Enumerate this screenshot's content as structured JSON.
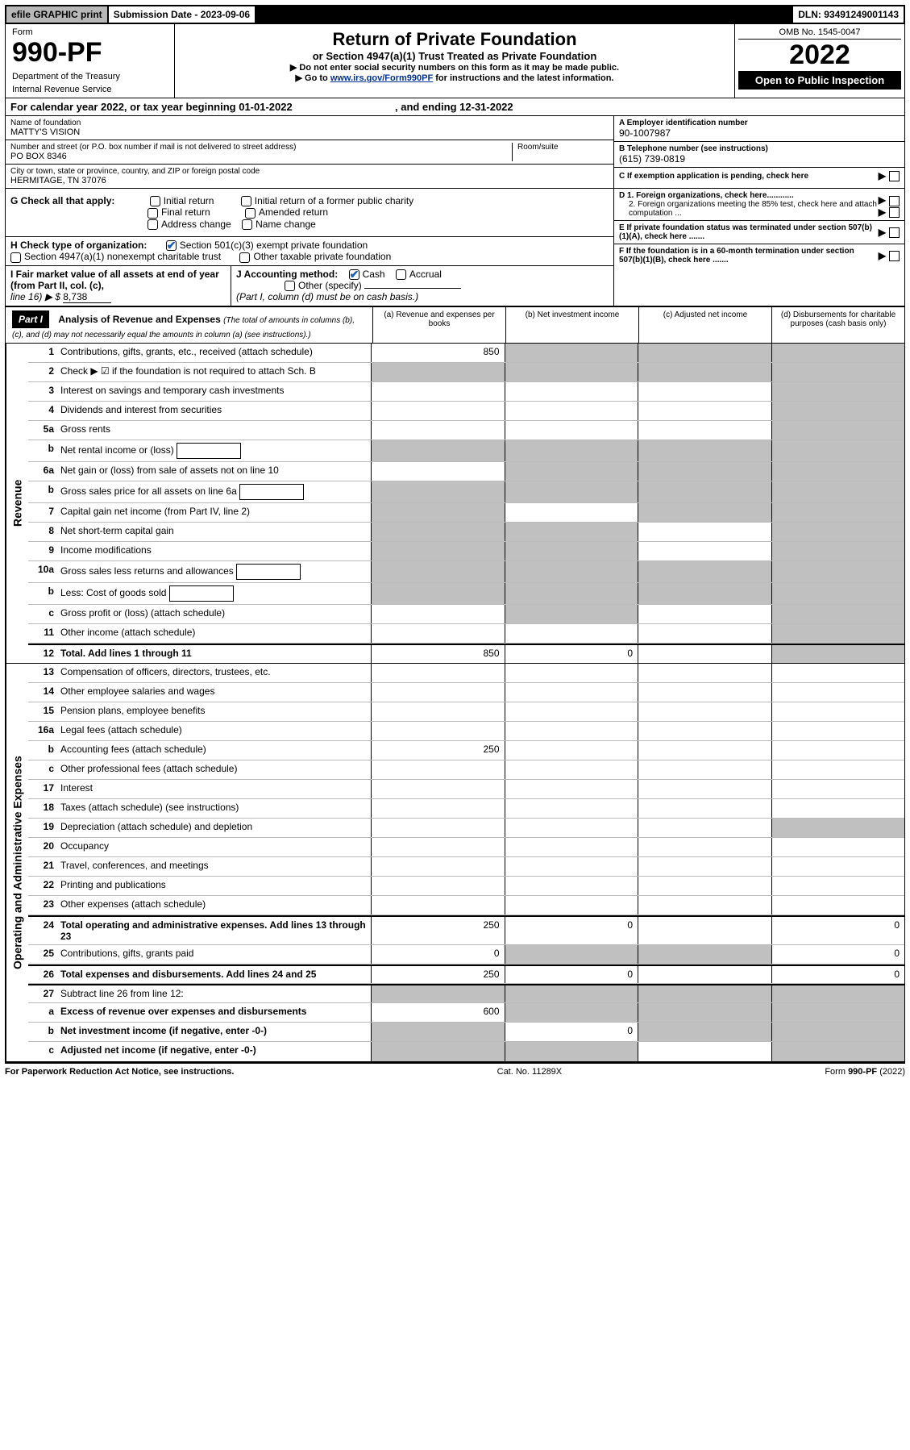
{
  "topbar": {
    "efile": "efile GRAPHIC print",
    "subdate_label": "Submission Date - 2023-09-06",
    "dln": "DLN: 93491249001143"
  },
  "header": {
    "form_label": "Form",
    "form_number": "990-PF",
    "dept1": "Department of the Treasury",
    "dept2": "Internal Revenue Service",
    "title": "Return of Private Foundation",
    "subtitle": "or Section 4947(a)(1) Trust Treated as Private Foundation",
    "note1": "▶ Do not enter social security numbers on this form as it may be made public.",
    "note2_pre": "▶ Go to ",
    "note2_link": "www.irs.gov/Form990PF",
    "note2_post": " for instructions and the latest information.",
    "omb": "OMB No. 1545-0047",
    "year": "2022",
    "open": "Open to Public Inspection"
  },
  "cal_year": {
    "text_a": "For calendar year 2022, or tax year beginning 01-01-2022",
    "text_b": ", and ending 12-31-2022"
  },
  "block_a": {
    "name_label": "Name of foundation",
    "name_value": "MATTY'S VISION",
    "addr_label": "Number and street (or P.O. box number if mail is not delivered to street address)",
    "addr_value": "PO BOX 8346",
    "room_label": "Room/suite",
    "city_label": "City or town, state or province, country, and ZIP or foreign postal code",
    "city_value": "HERMITAGE, TN  37076",
    "ein_label": "A Employer identification number",
    "ein_value": "90-1007987",
    "phone_label": "B Telephone number (see instructions)",
    "phone_value": "(615) 739-0819",
    "c_label": "C If exemption application is pending, check here"
  },
  "block_g": {
    "g_label": "G Check all that apply:",
    "opts": [
      "Initial return",
      "Initial return of a former public charity",
      "Final return",
      "Amended return",
      "Address change",
      "Name change"
    ],
    "h_label": "H Check type of organization:",
    "h_opt1": "Section 501(c)(3) exempt private foundation",
    "h_opt2": "Section 4947(a)(1) nonexempt charitable trust",
    "h_opt3": "Other taxable private foundation",
    "i_label_a": "I Fair market value of all assets at end of year (from Part II, col. (c),",
    "i_label_b": "line 16) ▶ $",
    "i_value": "8,738",
    "j_label": "J Accounting method:",
    "j_cash": "Cash",
    "j_accrual": "Accrual",
    "j_other": "Other (specify)",
    "j_note": "(Part I, column (d) must be on cash basis.)",
    "d1": "D 1. Foreign organizations, check here............",
    "d2": "2. Foreign organizations meeting the 85% test, check here and attach computation ...",
    "e_label": "E  If private foundation status was terminated under section 507(b)(1)(A), check here .......",
    "f_label": "F  If the foundation is in a 60-month termination under section 507(b)(1)(B), check here ......."
  },
  "part1": {
    "label": "Part I",
    "head_title": "Analysis of Revenue and Expenses",
    "head_note": "(The total of amounts in columns (b), (c), and (d) may not necessarily equal the amounts in column (a) (see instructions).)",
    "col_a": "(a)  Revenue and expenses per books",
    "col_b": "(b)  Net investment income",
    "col_c": "(c)  Adjusted net income",
    "col_d": "(d)  Disbursements for charitable purposes (cash basis only)"
  },
  "revenue_label": "Revenue",
  "expenses_label": "Operating and Administrative Expenses",
  "lines": [
    {
      "num": "1",
      "desc": "Contributions, gifts, grants, etc., received (attach schedule)",
      "a": "850",
      "b": "",
      "c": "",
      "d": "",
      "shade": [
        "b",
        "c",
        "d"
      ]
    },
    {
      "num": "2",
      "desc": "Check ▶ ☑ if the foundation is not required to attach Sch. B",
      "a": "",
      "b": "",
      "c": "",
      "d": "",
      "shade": [
        "a",
        "b",
        "c",
        "d"
      ]
    },
    {
      "num": "3",
      "desc": "Interest on savings and temporary cash investments",
      "a": "",
      "b": "",
      "c": "",
      "d": "",
      "shade": [
        "d"
      ]
    },
    {
      "num": "4",
      "desc": "Dividends and interest from securities",
      "a": "",
      "b": "",
      "c": "",
      "d": "",
      "shade": [
        "d"
      ]
    },
    {
      "num": "5a",
      "desc": "Gross rents",
      "a": "",
      "b": "",
      "c": "",
      "d": "",
      "shade": [
        "d"
      ]
    },
    {
      "num": "b",
      "desc": "Net rental income or (loss)",
      "a": "",
      "b": "",
      "c": "",
      "d": "",
      "shade": [
        "a",
        "b",
        "c",
        "d"
      ],
      "hasbox": true
    },
    {
      "num": "6a",
      "desc": "Net gain or (loss) from sale of assets not on line 10",
      "a": "",
      "b": "",
      "c": "",
      "d": "",
      "shade": [
        "b",
        "c",
        "d"
      ]
    },
    {
      "num": "b",
      "desc": "Gross sales price for all assets on line 6a",
      "a": "",
      "b": "",
      "c": "",
      "d": "",
      "shade": [
        "a",
        "b",
        "c",
        "d"
      ],
      "hasbox": true
    },
    {
      "num": "7",
      "desc": "Capital gain net income (from Part IV, line 2)",
      "a": "",
      "b": "",
      "c": "",
      "d": "",
      "shade": [
        "a",
        "c",
        "d"
      ]
    },
    {
      "num": "8",
      "desc": "Net short-term capital gain",
      "a": "",
      "b": "",
      "c": "",
      "d": "",
      "shade": [
        "a",
        "b",
        "d"
      ]
    },
    {
      "num": "9",
      "desc": "Income modifications",
      "a": "",
      "b": "",
      "c": "",
      "d": "",
      "shade": [
        "a",
        "b",
        "d"
      ]
    },
    {
      "num": "10a",
      "desc": "Gross sales less returns and allowances",
      "a": "",
      "b": "",
      "c": "",
      "d": "",
      "shade": [
        "a",
        "b",
        "c",
        "d"
      ],
      "hasbox": true
    },
    {
      "num": "b",
      "desc": "Less: Cost of goods sold",
      "a": "",
      "b": "",
      "c": "",
      "d": "",
      "shade": [
        "a",
        "b",
        "c",
        "d"
      ],
      "hasbox": true
    },
    {
      "num": "c",
      "desc": "Gross profit or (loss) (attach schedule)",
      "a": "",
      "b": "",
      "c": "",
      "d": "",
      "shade": [
        "b",
        "d"
      ]
    },
    {
      "num": "11",
      "desc": "Other income (attach schedule)",
      "a": "",
      "b": "",
      "c": "",
      "d": "",
      "shade": [
        "d"
      ]
    },
    {
      "num": "12",
      "desc": "Total. Add lines 1 through 11",
      "a": "850",
      "b": "0",
      "c": "",
      "d": "",
      "shade": [
        "d"
      ],
      "bold": true
    }
  ],
  "exp_lines": [
    {
      "num": "13",
      "desc": "Compensation of officers, directors, trustees, etc.",
      "a": "",
      "b": "",
      "c": "",
      "d": ""
    },
    {
      "num": "14",
      "desc": "Other employee salaries and wages",
      "a": "",
      "b": "",
      "c": "",
      "d": ""
    },
    {
      "num": "15",
      "desc": "Pension plans, employee benefits",
      "a": "",
      "b": "",
      "c": "",
      "d": ""
    },
    {
      "num": "16a",
      "desc": "Legal fees (attach schedule)",
      "a": "",
      "b": "",
      "c": "",
      "d": ""
    },
    {
      "num": "b",
      "desc": "Accounting fees (attach schedule)",
      "a": "250",
      "b": "",
      "c": "",
      "d": ""
    },
    {
      "num": "c",
      "desc": "Other professional fees (attach schedule)",
      "a": "",
      "b": "",
      "c": "",
      "d": ""
    },
    {
      "num": "17",
      "desc": "Interest",
      "a": "",
      "b": "",
      "c": "",
      "d": ""
    },
    {
      "num": "18",
      "desc": "Taxes (attach schedule) (see instructions)",
      "a": "",
      "b": "",
      "c": "",
      "d": ""
    },
    {
      "num": "19",
      "desc": "Depreciation (attach schedule) and depletion",
      "a": "",
      "b": "",
      "c": "",
      "d": "",
      "shade": [
        "d"
      ]
    },
    {
      "num": "20",
      "desc": "Occupancy",
      "a": "",
      "b": "",
      "c": "",
      "d": ""
    },
    {
      "num": "21",
      "desc": "Travel, conferences, and meetings",
      "a": "",
      "b": "",
      "c": "",
      "d": ""
    },
    {
      "num": "22",
      "desc": "Printing and publications",
      "a": "",
      "b": "",
      "c": "",
      "d": ""
    },
    {
      "num": "23",
      "desc": "Other expenses (attach schedule)",
      "a": "",
      "b": "",
      "c": "",
      "d": ""
    },
    {
      "num": "24",
      "desc": "Total operating and administrative expenses. Add lines 13 through 23",
      "a": "250",
      "b": "0",
      "c": "",
      "d": "0",
      "bold": true
    },
    {
      "num": "25",
      "desc": "Contributions, gifts, grants paid",
      "a": "0",
      "b": "",
      "c": "",
      "d": "0",
      "shade": [
        "b",
        "c"
      ]
    },
    {
      "num": "26",
      "desc": "Total expenses and disbursements. Add lines 24 and 25",
      "a": "250",
      "b": "0",
      "c": "",
      "d": "0",
      "bold": true
    },
    {
      "num": "27",
      "desc": "Subtract line 26 from line 12:",
      "a": "",
      "b": "",
      "c": "",
      "d": "",
      "shade": [
        "a",
        "b",
        "c",
        "d"
      ]
    },
    {
      "num": "a",
      "desc": "Excess of revenue over expenses and disbursements",
      "a": "600",
      "b": "",
      "c": "",
      "d": "",
      "shade": [
        "b",
        "c",
        "d"
      ],
      "bold": true
    },
    {
      "num": "b",
      "desc": "Net investment income (if negative, enter -0-)",
      "a": "",
      "b": "0",
      "c": "",
      "d": "",
      "shade": [
        "a",
        "c",
        "d"
      ],
      "bold": true
    },
    {
      "num": "c",
      "desc": "Adjusted net income (if negative, enter -0-)",
      "a": "",
      "b": "",
      "c": "",
      "d": "",
      "shade": [
        "a",
        "b",
        "d"
      ],
      "bold": true
    }
  ],
  "footer": {
    "left": "For Paperwork Reduction Act Notice, see instructions.",
    "mid": "Cat. No. 11289X",
    "right": "Form 990-PF (2022)"
  }
}
